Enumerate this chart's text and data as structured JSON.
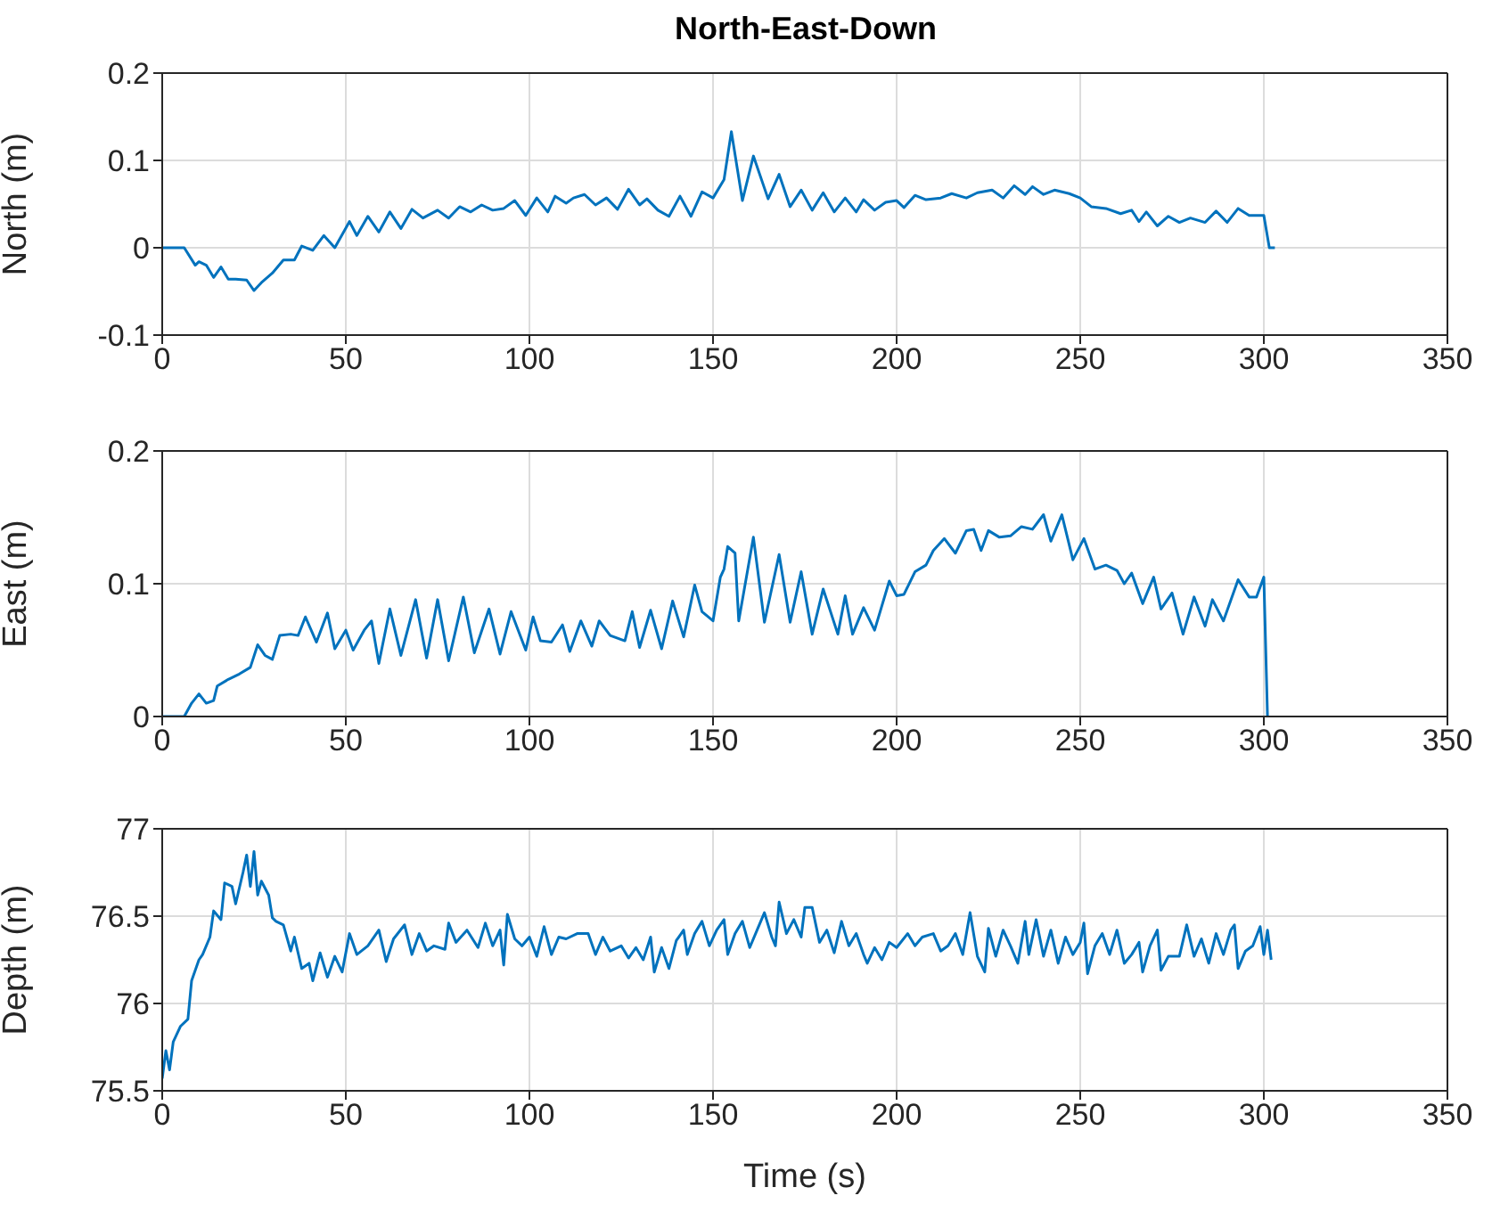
{
  "chart_data": [
    {
      "type": "line",
      "title": "North-East-Down",
      "ylabel": "North (m)",
      "xlim": [
        0,
        350
      ],
      "xticks": [
        0,
        50,
        100,
        150,
        200,
        250,
        300,
        350
      ],
      "ylim": [
        -0.1,
        0.2
      ],
      "yticks": [
        -0.1,
        0,
        0.1,
        0.2
      ],
      "grid": true,
      "x": [
        0,
        6,
        9,
        10,
        12,
        14,
        16,
        18,
        20,
        23,
        25,
        27,
        30,
        33,
        36,
        38,
        41,
        44,
        47,
        51,
        53,
        56,
        59,
        62,
        65,
        68,
        71,
        75,
        78,
        81,
        84,
        87,
        90,
        93,
        96,
        99,
        102,
        105,
        107,
        110,
        112,
        115,
        118,
        121,
        124,
        127,
        130,
        132,
        135,
        138,
        141,
        144,
        147,
        150,
        153,
        155,
        158,
        161,
        165,
        168,
        171,
        174,
        177,
        180,
        183,
        186,
        189,
        191,
        194,
        197,
        200,
        202,
        205,
        208,
        212,
        215,
        219,
        222,
        226,
        229,
        232,
        235,
        237,
        240,
        243,
        247,
        250,
        253,
        257,
        261,
        264,
        266,
        268,
        271,
        274,
        277,
        280,
        284,
        287,
        290,
        293,
        296,
        300,
        301.5,
        303
      ],
      "series": [
        {
          "color": "#0072bd",
          "values": [
            0,
            0,
            -0.02,
            -0.016,
            -0.02,
            -0.034,
            -0.022,
            -0.036,
            -0.036,
            -0.037,
            -0.049,
            -0.04,
            -0.029,
            -0.014,
            -0.014,
            0.002,
            -0.003,
            0.014,
            0,
            0.03,
            0.014,
            0.036,
            0.018,
            0.041,
            0.022,
            0.044,
            0.034,
            0.043,
            0.034,
            0.047,
            0.041,
            0.049,
            0.043,
            0.045,
            0.054,
            0.037,
            0.057,
            0.041,
            0.059,
            0.051,
            0.057,
            0.061,
            0.049,
            0.057,
            0.044,
            0.067,
            0.049,
            0.056,
            0.043,
            0.036,
            0.059,
            0.036,
            0.064,
            0.057,
            0.078,
            0.133,
            0.054,
            0.105,
            0.056,
            0.084,
            0.047,
            0.066,
            0.043,
            0.063,
            0.041,
            0.057,
            0.041,
            0.055,
            0.043,
            0.052,
            0.054,
            0.046,
            0.06,
            0.055,
            0.057,
            0.062,
            0.057,
            0.063,
            0.066,
            0.057,
            0.071,
            0.061,
            0.07,
            0.061,
            0.066,
            0.062,
            0.057,
            0.047,
            0.045,
            0.039,
            0.043,
            0.03,
            0.041,
            0.025,
            0.036,
            0.029,
            0.034,
            0.029,
            0.042,
            0.029,
            0.045,
            0.037,
            0.037,
            0,
            0
          ]
        }
      ]
    },
    {
      "type": "line",
      "ylabel": "East (m)",
      "xlim": [
        0,
        350
      ],
      "xticks": [
        0,
        50,
        100,
        150,
        200,
        250,
        300,
        350
      ],
      "ylim": [
        0,
        0.2
      ],
      "yticks": [
        0,
        0.1,
        0.2
      ],
      "grid": true,
      "x": [
        0,
        6,
        8,
        10,
        12,
        14,
        15,
        18,
        21,
        24,
        26,
        28,
        30,
        32,
        35,
        37,
        39,
        42,
        45,
        47,
        50,
        52,
        55,
        57,
        59,
        62,
        65,
        69,
        72,
        75,
        78,
        82,
        85,
        89,
        92,
        95,
        99,
        101,
        103,
        106,
        109,
        111,
        114,
        117,
        119,
        122,
        124,
        126,
        128,
        130,
        133,
        136,
        139,
        142,
        145,
        147,
        150,
        152,
        153,
        154,
        156,
        157,
        161,
        164,
        168,
        171,
        174,
        177,
        180,
        184,
        186,
        188,
        191,
        194,
        198,
        200,
        202,
        205,
        208,
        210,
        213,
        216,
        219,
        221,
        223,
        225,
        228,
        231,
        234,
        237,
        240,
        242,
        245,
        248,
        251,
        254,
        257,
        260,
        262,
        264,
        267,
        270,
        272,
        275,
        278,
        281,
        284,
        286,
        289,
        293,
        296,
        298,
        300,
        301
      ],
      "series": [
        {
          "color": "#0072bd",
          "values": [
            0,
            0,
            0.01,
            0.017,
            0.01,
            0.012,
            0.023,
            0.028,
            0.032,
            0.037,
            0.054,
            0.046,
            0.043,
            0.061,
            0.062,
            0.061,
            0.075,
            0.056,
            0.078,
            0.051,
            0.065,
            0.05,
            0.065,
            0.072,
            0.04,
            0.081,
            0.046,
            0.088,
            0.044,
            0.088,
            0.042,
            0.09,
            0.048,
            0.081,
            0.047,
            0.079,
            0.05,
            0.075,
            0.057,
            0.056,
            0.069,
            0.049,
            0.072,
            0.053,
            0.072,
            0.061,
            0.059,
            0.057,
            0.079,
            0.052,
            0.08,
            0.051,
            0.087,
            0.06,
            0.099,
            0.079,
            0.072,
            0.105,
            0.111,
            0.128,
            0.123,
            0.072,
            0.135,
            0.071,
            0.122,
            0.071,
            0.109,
            0.062,
            0.096,
            0.062,
            0.091,
            0.062,
            0.082,
            0.065,
            0.102,
            0.091,
            0.092,
            0.109,
            0.114,
            0.125,
            0.134,
            0.123,
            0.14,
            0.141,
            0.125,
            0.14,
            0.135,
            0.136,
            0.143,
            0.141,
            0.152,
            0.132,
            0.152,
            0.118,
            0.134,
            0.111,
            0.114,
            0.11,
            0.1,
            0.108,
            0.085,
            0.105,
            0.081,
            0.093,
            0.062,
            0.09,
            0.068,
            0.088,
            0.072,
            0.103,
            0.09,
            0.09,
            0.105,
            0
          ]
        }
      ]
    },
    {
      "type": "line",
      "ylabel": "Depth (m)",
      "xlabel": "Time (s)",
      "xlim": [
        0,
        350
      ],
      "xticks": [
        0,
        50,
        100,
        150,
        200,
        250,
        300,
        350
      ],
      "ylim": [
        75.5,
        77
      ],
      "yticks": [
        75.5,
        76,
        76.5,
        77
      ],
      "grid": true,
      "x": [
        0,
        1,
        2,
        3,
        5,
        7,
        8,
        10,
        11,
        13,
        14,
        16,
        17,
        19,
        20,
        22,
        23,
        24,
        25,
        26,
        27,
        29,
        30,
        31,
        33,
        35,
        36,
        38,
        40,
        41,
        43,
        45,
        47,
        49,
        51,
        53,
        56,
        59,
        61,
        63,
        66,
        68,
        70,
        72,
        74,
        77,
        78,
        80,
        83,
        86,
        88,
        90,
        92,
        93,
        94,
        96,
        98,
        100,
        102,
        104,
        106,
        108,
        110,
        113,
        116,
        118,
        120,
        122,
        125,
        127,
        129,
        131,
        133,
        134,
        136,
        138,
        140,
        142,
        143,
        145,
        147,
        149,
        151,
        153,
        154,
        156,
        158,
        160,
        162,
        164,
        166,
        167,
        168,
        170,
        172,
        174,
        175,
        177,
        179,
        181,
        183,
        185,
        187,
        189,
        191,
        192,
        194,
        196,
        198,
        200,
        203,
        205,
        207,
        210,
        212,
        214,
        216,
        218,
        220,
        222,
        224,
        225,
        227,
        229,
        231,
        233,
        235,
        236,
        238,
        240,
        242,
        244,
        246,
        248,
        250,
        251,
        252,
        254,
        256,
        258,
        260,
        262,
        264,
        266,
        267,
        269,
        271,
        272,
        274,
        277,
        279,
        281,
        283,
        285,
        287,
        289,
        291,
        292,
        293,
        295,
        297,
        299,
        300,
        301,
        302
      ],
      "series": [
        {
          "color": "#0072bd",
          "values": [
            75.57,
            75.73,
            75.62,
            75.78,
            75.87,
            75.91,
            76.13,
            76.25,
            76.28,
            76.38,
            76.53,
            76.48,
            76.69,
            76.67,
            76.57,
            76.75,
            76.85,
            76.67,
            76.87,
            76.62,
            76.7,
            76.62,
            76.49,
            76.47,
            76.45,
            76.3,
            76.38,
            76.2,
            76.23,
            76.13,
            76.29,
            76.15,
            76.27,
            76.18,
            76.4,
            76.28,
            76.33,
            76.42,
            76.24,
            76.37,
            76.45,
            76.28,
            76.4,
            76.3,
            76.33,
            76.31,
            76.46,
            76.35,
            76.42,
            76.32,
            76.46,
            76.33,
            76.42,
            76.22,
            76.51,
            76.37,
            76.33,
            76.38,
            76.27,
            76.44,
            76.28,
            76.38,
            76.37,
            76.4,
            76.4,
            76.28,
            76.38,
            76.3,
            76.33,
            76.26,
            76.32,
            76.25,
            76.38,
            76.18,
            76.32,
            76.2,
            76.36,
            76.42,
            76.28,
            76.4,
            76.47,
            76.33,
            76.42,
            76.48,
            76.28,
            76.4,
            76.47,
            76.32,
            76.42,
            76.52,
            76.38,
            76.33,
            76.58,
            76.4,
            76.48,
            76.38,
            76.55,
            76.55,
            76.35,
            76.42,
            76.29,
            76.47,
            76.33,
            76.4,
            76.28,
            76.23,
            76.32,
            76.25,
            76.35,
            76.32,
            76.4,
            76.33,
            76.38,
            76.4,
            76.3,
            76.33,
            76.4,
            76.28,
            76.52,
            76.27,
            76.18,
            76.43,
            76.27,
            76.42,
            76.33,
            76.23,
            76.47,
            76.28,
            76.48,
            76.27,
            76.42,
            76.23,
            76.38,
            76.28,
            76.35,
            76.46,
            76.17,
            76.33,
            76.4,
            76.28,
            76.42,
            76.23,
            76.28,
            76.35,
            76.18,
            76.33,
            76.42,
            76.19,
            76.27,
            76.27,
            76.45,
            76.27,
            76.37,
            76.23,
            76.4,
            76.28,
            76.42,
            76.45,
            76.2,
            76.3,
            76.33,
            76.44,
            76.28,
            76.42,
            76.25
          ]
        }
      ]
    }
  ]
}
